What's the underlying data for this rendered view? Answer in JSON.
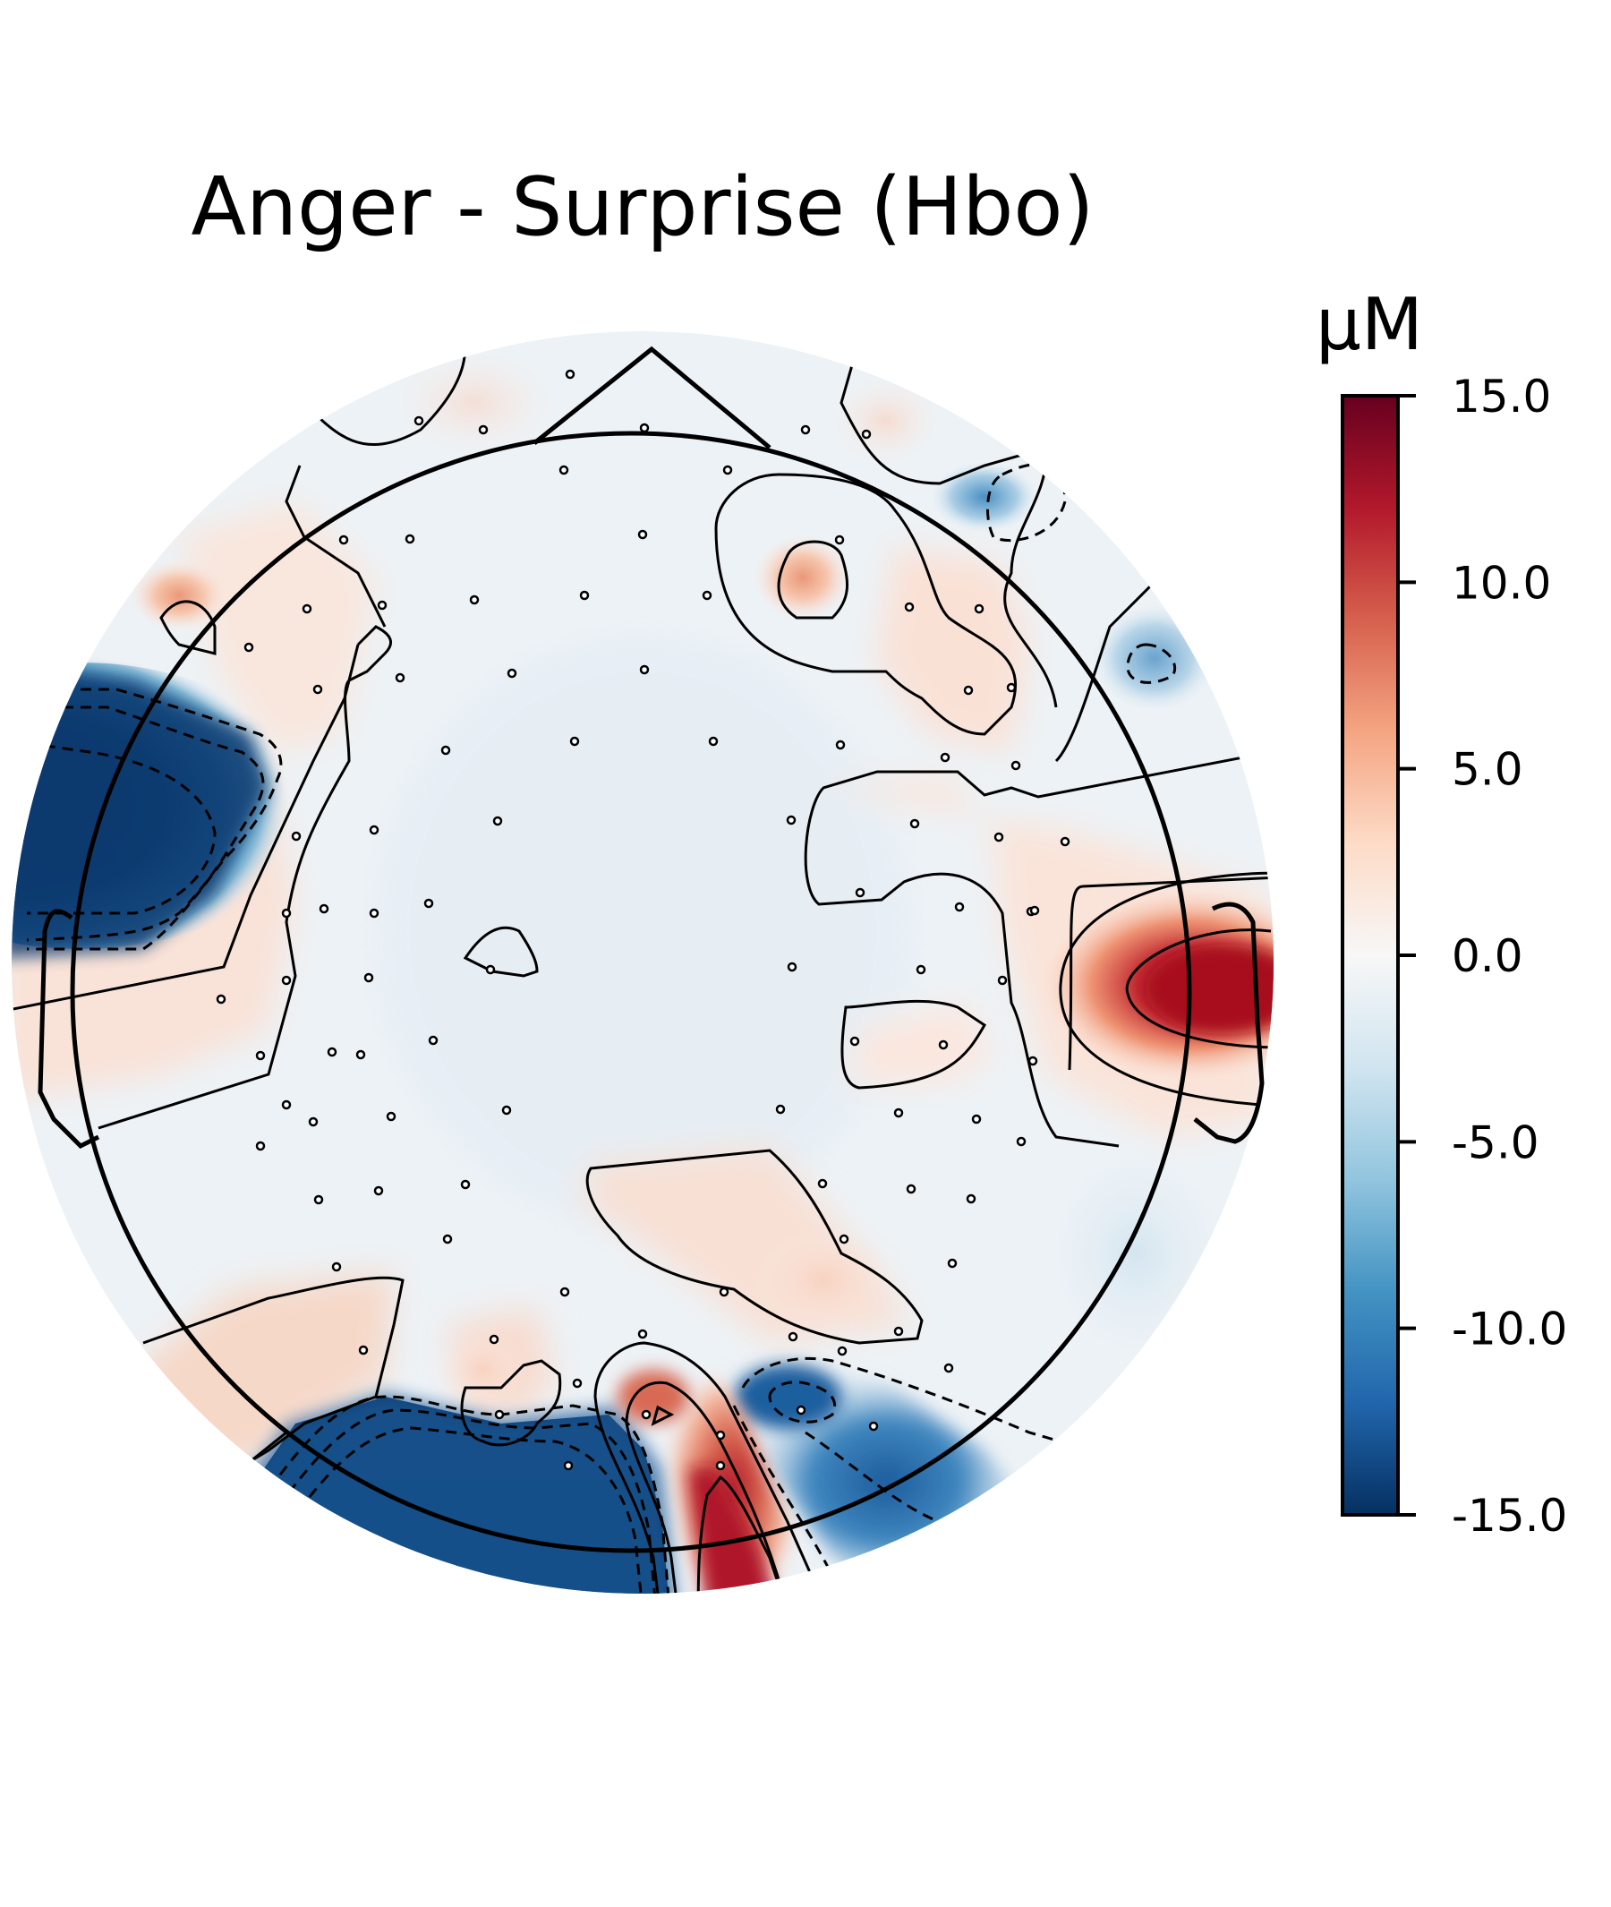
{
  "chart_data": {
    "type": "heatmap",
    "subtype": "topographic-map",
    "title": "Anger - Surprise (Hbo)",
    "colorbar": {
      "label": "µM",
      "min": -15.0,
      "max": 15.0,
      "ticks": [
        "15.0",
        "10.0",
        "5.0",
        "0.0",
        "-5.0",
        "-10.0",
        "-15.0"
      ],
      "tick_values": [
        15,
        10,
        5,
        0,
        -5,
        -10,
        -15
      ],
      "colormap": "RdBu_r",
      "colors": [
        "#053061",
        "#2166ac",
        "#4393c3",
        "#92c5de",
        "#d1e5f0",
        "#f7f7f7",
        "#fddbc7",
        "#f4a582",
        "#d6604d",
        "#b2182b",
        "#67001f"
      ]
    },
    "extremes": [
      {
        "region": "left-temporal",
        "value": -15.0
      },
      {
        "region": "right-temporal",
        "value": 13.0
      },
      {
        "region": "left-occipital",
        "value": -15.0
      },
      {
        "region": "mid-occipital",
        "value": 14.0
      },
      {
        "region": "right-occipital",
        "value": -10.0
      },
      {
        "region": "right-frontal",
        "value": 6.0
      },
      {
        "region": "far-right-frontal",
        "value": -8.0
      }
    ],
    "grid": false,
    "legend": "colorbar-right"
  }
}
